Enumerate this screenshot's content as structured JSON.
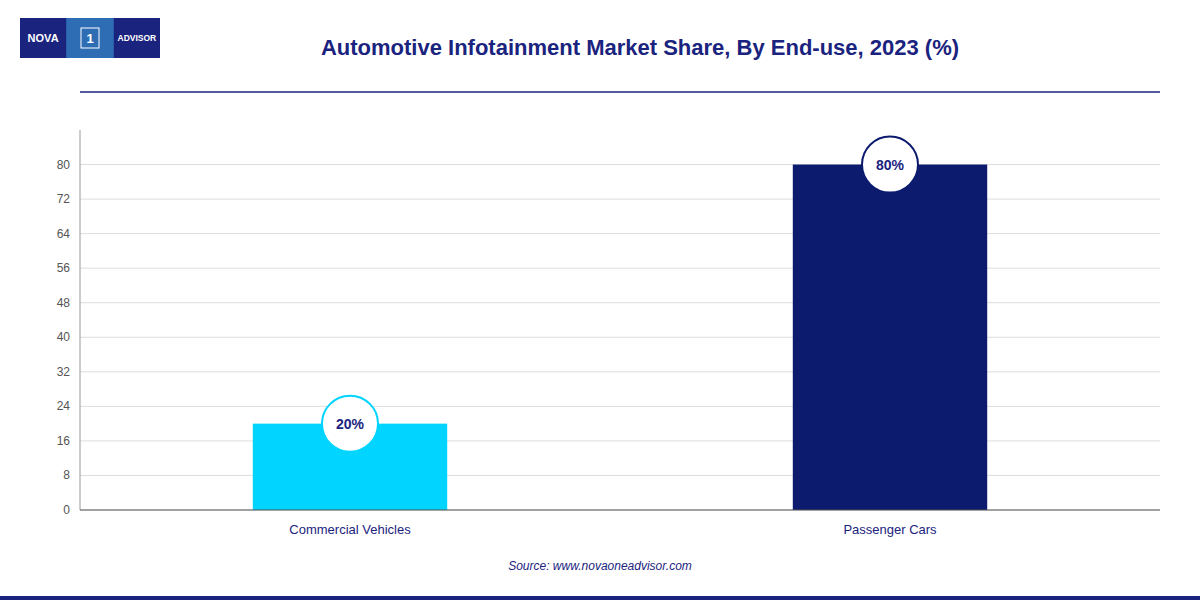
{
  "chart_data": {
    "type": "bar",
    "title": "Automotive Infotainment Market Share, By End-use, 2023 (%)",
    "categories": [
      "Commercial Vehicles",
      "Passenger Cars"
    ],
    "values": [
      20,
      80
    ],
    "value_labels": [
      "20%",
      "80%"
    ],
    "data_labels": true,
    "colors": [
      "#00D4FF",
      "#0D1B6E"
    ],
    "ylim": [
      0,
      88
    ],
    "yticks": [
      0,
      8,
      16,
      24,
      32,
      40,
      48,
      56,
      64,
      72,
      80
    ],
    "grid": true,
    "annotations": [
      "Source: www.novaoneadvisor.com",
      "NOVA",
      "1",
      "ADVISOR"
    ]
  }
}
